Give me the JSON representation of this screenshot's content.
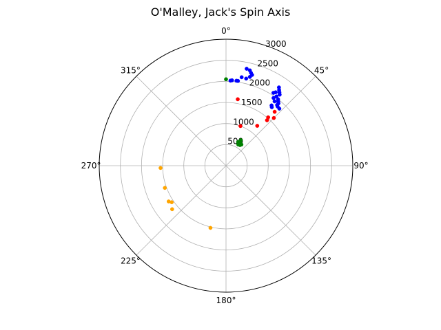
{
  "chart_data": {
    "type": "scatter",
    "projection": "polar",
    "title": "O'Malley, Jack's Spin Axis",
    "theta_zero_location": "top",
    "theta_direction": "clockwise",
    "theta_ticks": [
      {
        "value": 0,
        "label": "0°"
      },
      {
        "value": 45,
        "label": "45°"
      },
      {
        "value": 90,
        "label": "90°"
      },
      {
        "value": 135,
        "label": "135°"
      },
      {
        "value": 180,
        "label": "180°"
      },
      {
        "value": 225,
        "label": "225°"
      },
      {
        "value": 270,
        "label": "270°"
      },
      {
        "value": 315,
        "label": "315°"
      }
    ],
    "r_ticks": [
      {
        "value": 500,
        "label": "500"
      },
      {
        "value": 1000,
        "label": "1000"
      },
      {
        "value": 1500,
        "label": "1500"
      },
      {
        "value": 2000,
        "label": "2000"
      },
      {
        "value": 2500,
        "label": "2500"
      },
      {
        "value": 3000,
        "label": "3000"
      }
    ],
    "r_label_angle": 22.5,
    "rlim": [
      0,
      3000
    ],
    "grid": true,
    "series": [
      {
        "color": "#0000ff",
        "points": [
          [
            12,
            2350
          ],
          [
            14,
            2330
          ],
          [
            15,
            2280
          ],
          [
            16,
            2240
          ],
          [
            15,
            2180
          ],
          [
            13,
            2120
          ],
          [
            10,
            2130
          ],
          [
            8,
            2030
          ],
          [
            7,
            2030
          ],
          [
            4,
            2030
          ],
          [
            3,
            2020
          ],
          [
            34,
            2240
          ],
          [
            35,
            2190
          ],
          [
            36,
            2150
          ],
          [
            37,
            2110
          ],
          [
            34,
            2100
          ],
          [
            33,
            2060
          ],
          [
            36,
            2030
          ],
          [
            38,
            2000
          ],
          [
            35,
            1960
          ],
          [
            39,
            1960
          ],
          [
            40,
            1930
          ],
          [
            37,
            1910
          ],
          [
            40,
            1880
          ],
          [
            41,
            1860
          ],
          [
            43,
            1850
          ],
          [
            37,
            1790
          ],
          [
            38,
            1760
          ]
        ]
      },
      {
        "color": "#ff0000",
        "points": [
          [
            42,
            1720
          ],
          [
            45,
            1600
          ],
          [
            41,
            1520
          ],
          [
            42,
            1450
          ],
          [
            38,
            1200
          ],
          [
            10,
            1600
          ],
          [
            20,
            1000
          ]
        ]
      },
      {
        "color": "#008000",
        "points": [
          [
            0,
            2050
          ],
          [
            30,
            700
          ],
          [
            32,
            640
          ],
          [
            27,
            630
          ],
          [
            34,
            590
          ],
          [
            30,
            580
          ],
          [
            36,
            620
          ]
        ]
      },
      {
        "color": "#ffa500",
        "points": [
          [
            268,
            1550
          ],
          [
            250,
            1540
          ],
          [
            238,
            1600
          ],
          [
            236,
            1550
          ],
          [
            231,
            1640
          ],
          [
            194,
            1520
          ]
        ]
      }
    ]
  }
}
